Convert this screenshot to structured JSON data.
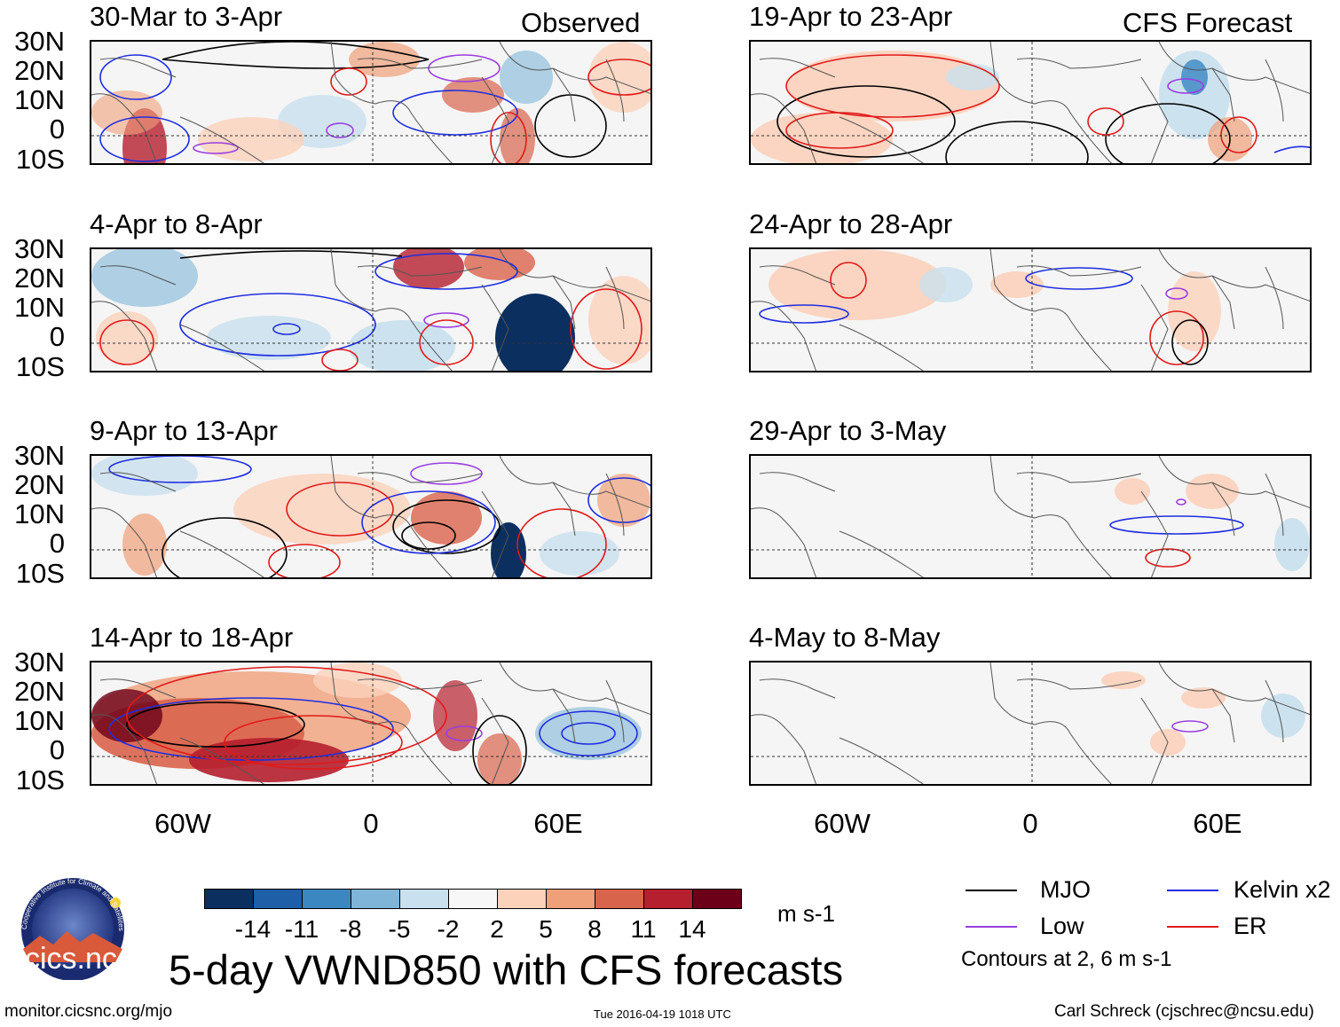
{
  "figure_title": "5-day VWND850 with CFS forecasts",
  "observed_label": "Observed",
  "forecast_label": "CFS Forecast",
  "panels_left": [
    {
      "period": "30-Mar to 3-Apr"
    },
    {
      "period": "4-Apr to 8-Apr"
    },
    {
      "period": "9-Apr to 13-Apr"
    },
    {
      "period": "14-Apr to 18-Apr"
    }
  ],
  "panels_right": [
    {
      "period": "19-Apr to 23-Apr"
    },
    {
      "period": "24-Apr to 28-Apr"
    },
    {
      "period": "29-Apr to 3-May"
    },
    {
      "period": "4-May to 8-May"
    }
  ],
  "lat_ticks": [
    "30N",
    "20N",
    "10N",
    "0",
    "10S"
  ],
  "lon_ticks": [
    "60W",
    "0",
    "60E"
  ],
  "colorbar": {
    "labels": [
      "-14",
      "-11",
      "-8",
      "-5",
      "-2",
      "2",
      "5",
      "8",
      "11",
      "14"
    ],
    "colors": [
      "#0b2f5e",
      "#1f5fa8",
      "#3a87c2",
      "#7fb5d9",
      "#c9e0ee",
      "#f7f7f7",
      "#fcd2bb",
      "#f0a079",
      "#d9644c",
      "#b51f2e",
      "#6b0018"
    ],
    "unit": "m s-1"
  },
  "legend": {
    "mjo": "MJO",
    "kelvin": "Kelvin x2",
    "low": "Low",
    "er": "ER",
    "contours_note": "Contours at 2, 6 m s-1",
    "mjo_color": "#000000",
    "kelvin_color": "#1f2ee0",
    "low_color": "#9a3ee0",
    "er_color": "#e01a1a"
  },
  "logo": {
    "text": "cics.nc",
    "ring_text": "Cooperative Institute for Climate and Satellites"
  },
  "footer": {
    "url": "monitor.cicsnc.org/mjo",
    "timestamp": "Tue 2016-04-19 1018 UTC",
    "author": "Carl Schreck (cjschrec@ncsu.edu)"
  }
}
